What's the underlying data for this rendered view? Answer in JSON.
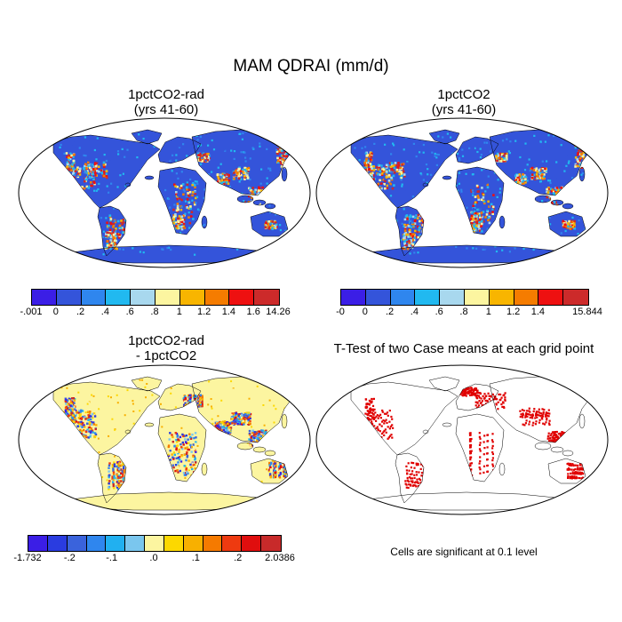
{
  "figure": {
    "title": "MAM QDRAI (mm/d)",
    "note": "Cells are significant at 0.1 level"
  },
  "panels": [
    {
      "id": "tl",
      "title_lines": [
        "1pctCO2-rad",
        "(yrs 41-60)"
      ],
      "scheme": "abs"
    },
    {
      "id": "tr",
      "title_lines": [
        "1pctCO2",
        "(yrs 41-60)"
      ],
      "scheme": "abs"
    },
    {
      "id": "bl",
      "title_lines": [
        "1pctCO2-rad",
        "- 1pctCO2"
      ],
      "scheme": "diff"
    },
    {
      "id": "br",
      "title_lines": [
        "T-Test of two Case means at each grid point"
      ],
      "scheme": "ttest"
    }
  ],
  "colorbars": {
    "tl": {
      "colors": [
        "#3b1ee6",
        "#3454da",
        "#2f86ee",
        "#21b9f0",
        "#a8d8ee",
        "#fcf5a0",
        "#f8b500",
        "#f57c00",
        "#ee1010",
        "#cc2a2a"
      ],
      "labels": [
        "-.001",
        "0",
        ".2",
        ".4",
        ".6",
        ".8",
        "1",
        "1.2",
        "1.4",
        "1.6",
        "14.26"
      ]
    },
    "tr": {
      "colors": [
        "#3b1ee6",
        "#3454da",
        "#2f86ee",
        "#21b9f0",
        "#a8d8ee",
        "#fcf5a0",
        "#f8b500",
        "#f57c00",
        "#ee1010",
        "#cc2a2a"
      ],
      "labels": [
        "-0",
        "0",
        ".2",
        ".4",
        ".6",
        ".8",
        "1",
        "1.2",
        "1.4",
        "",
        "15.844"
      ]
    },
    "bl": {
      "colors": [
        "#3b1ee6",
        "#2a3ce0",
        "#3a63dc",
        "#2f86ee",
        "#21b0f0",
        "#7ac6ee",
        "#fcf5a0",
        "#fcd800",
        "#f8b000",
        "#f57a00",
        "#ee3a10",
        "#e00e0e",
        "#c82a2a"
      ],
      "labels": [
        "-1.732",
        "-.2",
        "-.1",
        ".0",
        ".1",
        ".2",
        "2.0386"
      ]
    }
  },
  "styling": {
    "land_base_abs": "#3454da",
    "land_base_diff": "#fcf5a0",
    "ocean": "#ffffff",
    "ttest_dot": "#e00000",
    "coast": "#000000"
  }
}
